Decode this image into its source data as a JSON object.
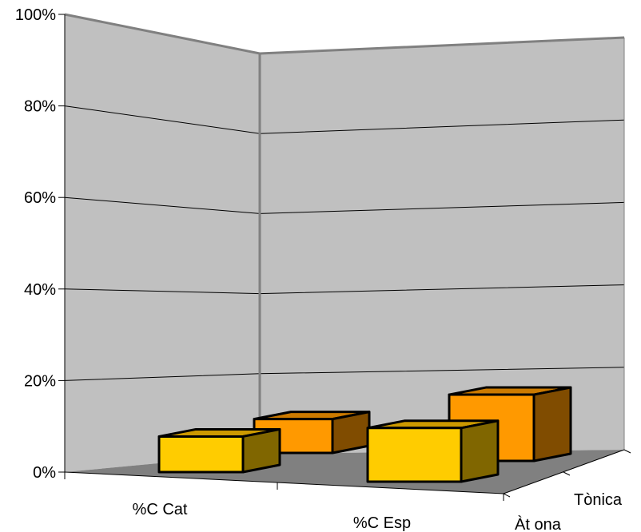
{
  "chart_data": {
    "type": "bar",
    "subtype": "3d-column",
    "categories": [
      "%C Cat",
      "%C Esp"
    ],
    "depth_categories": [
      "Àt ona",
      "Tònica"
    ],
    "series": [
      {
        "name": "Àt ona",
        "values": [
          11,
          16
        ]
      },
      {
        "name": "Tònica",
        "values": [
          11,
          21
        ]
      }
    ],
    "y_ticks": [
      "0%",
      "20%",
      "40%",
      "60%",
      "80%",
      "100%"
    ],
    "ylim": [
      0,
      100
    ],
    "grid": true,
    "legend": "none",
    "title": "",
    "xlabel": "",
    "ylabel": ""
  },
  "colors": {
    "wall": "#c0c0c0",
    "floor": "#808080",
    "edge": "#808080",
    "gridline": "#000000",
    "series_front_face": "#ffcc00",
    "series_front_top": "#cc9900",
    "series_front_side": "#806600",
    "series_back_face": "#ff9900",
    "series_back_top": "#cc7a00",
    "series_back_side": "#804c00"
  }
}
